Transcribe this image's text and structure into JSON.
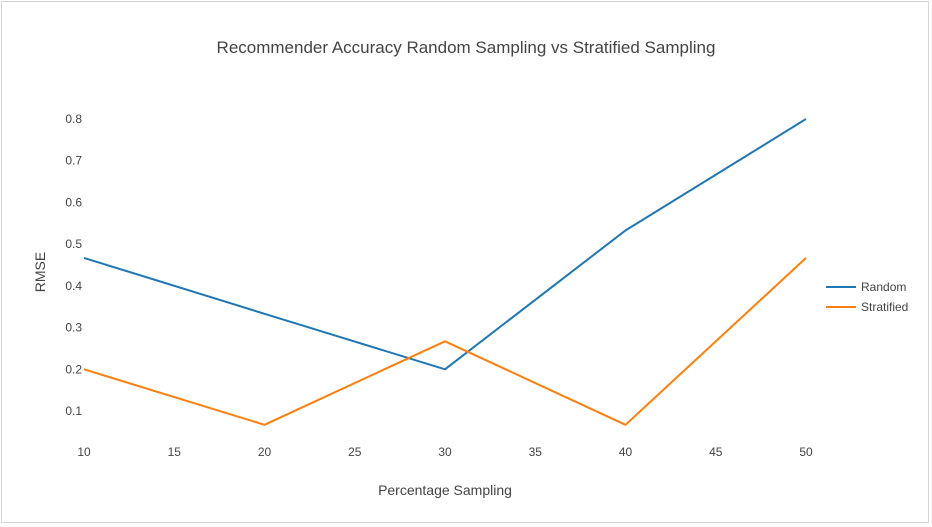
{
  "chart_data": {
    "type": "line",
    "title": "Recommender Accuracy  Random Sampling vs Stratified Sampling",
    "xlabel": "Percentage Sampling",
    "ylabel": "RMSE",
    "x_ticks": [
      "10",
      "15",
      "20",
      "25",
      "30",
      "35",
      "40",
      "45",
      "50"
    ],
    "y_ticks": [
      "0.1",
      "0.2",
      "0.3",
      "0.4",
      "0.5",
      "0.6",
      "0.7",
      "0.8"
    ],
    "xlim": [
      10,
      50
    ],
    "ylim": [
      0.1,
      0.8
    ],
    "grid": false,
    "legend_position": "right",
    "x": [
      10,
      20,
      30,
      40,
      50
    ],
    "series": [
      {
        "name": "Random",
        "color": "#1f77b4",
        "values": [
          0.467,
          0.333,
          0.2,
          0.533,
          0.8
        ]
      },
      {
        "name": "Stratified",
        "color": "#ff7f0e",
        "values": [
          0.2,
          0.067,
          0.267,
          0.067,
          0.467
        ]
      }
    ]
  }
}
